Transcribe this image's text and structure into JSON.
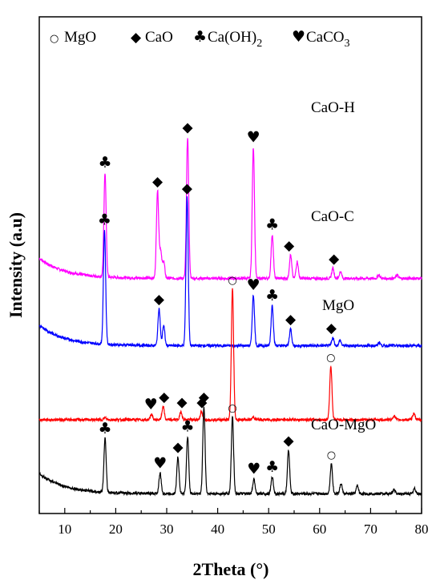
{
  "chart_data": {
    "type": "line",
    "xlabel": "2Theta (°)",
    "ylabel": "Intensity (a.u)",
    "xlim": [
      5,
      80
    ],
    "x_ticks": [
      10,
      20,
      30,
      40,
      50,
      60,
      70,
      80
    ],
    "grid": false,
    "legend_placement": "top",
    "legend": [
      {
        "symbol": "○",
        "label": "MgO",
        "phase": "mgo"
      },
      {
        "symbol": "◆",
        "label": "CaO",
        "phase": "cao"
      },
      {
        "symbol": "♣",
        "label": "Ca(OH)",
        "sub": "2",
        "phase": "caoh2"
      },
      {
        "symbol": "♥",
        "label": "CaCO",
        "sub": "3",
        "phase": "caco3"
      }
    ],
    "phase_symbols": {
      "mgo": "○",
      "cao": "◆",
      "caoh2": "♣",
      "caco3": "♥"
    },
    "series": [
      {
        "name": "CaO-H",
        "color": "#ff00ff",
        "offset": 3.2,
        "baseline": 0.3,
        "peaks": [
          [
            17.9,
            1.55
          ],
          [
            28.2,
            1.3
          ],
          [
            28.8,
            0.4
          ],
          [
            29.4,
            0.25
          ],
          [
            34.1,
            2.1
          ],
          [
            47.0,
            1.95
          ],
          [
            50.7,
            0.65
          ],
          [
            54.3,
            0.35
          ],
          [
            55.6,
            0.25
          ],
          [
            62.6,
            0.15
          ],
          [
            64.1,
            0.1
          ],
          [
            71.6,
            0.05
          ],
          [
            75.2,
            0.05
          ]
        ],
        "markers": [
          {
            "phase": "caoh2",
            "x": 17.9
          },
          {
            "phase": "cao",
            "x": 28.2
          },
          {
            "phase": "cao",
            "x": 34.1
          },
          {
            "phase": "caco3",
            "x": 47.0
          },
          {
            "phase": "caoh2",
            "x": 50.7
          },
          {
            "phase": "cao",
            "x": 54.0
          },
          {
            "phase": "cao",
            "x": 62.8
          }
        ]
      },
      {
        "name": "CaO-C",
        "color": "#0000ff",
        "offset": 2.2,
        "baseline": 0.3,
        "peaks": [
          [
            17.8,
            1.7
          ],
          [
            28.5,
            0.55
          ],
          [
            29.4,
            0.3
          ],
          [
            34.0,
            2.2
          ],
          [
            47.0,
            0.75
          ],
          [
            50.7,
            0.6
          ],
          [
            54.3,
            0.25
          ],
          [
            62.6,
            0.12
          ],
          [
            64.0,
            0.08
          ],
          [
            71.7,
            0.05
          ]
        ],
        "markers": [
          {
            "phase": "caoh2",
            "x": 17.8
          },
          {
            "phase": "cao",
            "x": 28.5
          },
          {
            "phase": "cao",
            "x": 34.0
          },
          {
            "phase": "caco3",
            "x": 47.0
          },
          {
            "phase": "caoh2",
            "x": 50.7
          },
          {
            "phase": "cao",
            "x": 54.3
          },
          {
            "phase": "cao",
            "x": 62.3
          }
        ]
      },
      {
        "name": "MgO",
        "color": "#ff0000",
        "offset": 1.1,
        "baseline": 0.0,
        "peaks": [
          [
            17.9,
            0.03
          ],
          [
            27.0,
            0.08
          ],
          [
            29.3,
            0.2
          ],
          [
            32.8,
            0.12
          ],
          [
            36.8,
            0.12
          ],
          [
            42.9,
            1.95
          ],
          [
            47.0,
            0.04
          ],
          [
            62.2,
            0.8
          ],
          [
            74.6,
            0.06
          ],
          [
            78.5,
            0.1
          ]
        ],
        "markers": [
          {
            "phase": "caco3",
            "x": 26.9
          },
          {
            "phase": "cao",
            "x": 29.5
          },
          {
            "phase": "cao",
            "x": 33.0
          },
          {
            "phase": "cao",
            "x": 36.9
          },
          {
            "phase": "mgo",
            "x": 42.9
          },
          {
            "phase": "mgo",
            "x": 62.2
          }
        ]
      },
      {
        "name": "CaO-MgO",
        "color": "#000000",
        "offset": 0.0,
        "baseline": 0.3,
        "peaks": [
          [
            17.9,
            0.8
          ],
          [
            28.7,
            0.3
          ],
          [
            32.2,
            0.55
          ],
          [
            34.1,
            0.85
          ],
          [
            37.3,
            1.3
          ],
          [
            42.9,
            1.15
          ],
          [
            47.1,
            0.22
          ],
          [
            50.7,
            0.25
          ],
          [
            53.9,
            0.65
          ],
          [
            62.3,
            0.45
          ],
          [
            64.2,
            0.15
          ],
          [
            67.4,
            0.12
          ],
          [
            74.6,
            0.06
          ],
          [
            78.6,
            0.08
          ]
        ],
        "markers": [
          {
            "phase": "caoh2",
            "x": 17.9
          },
          {
            "phase": "caco3",
            "x": 28.7
          },
          {
            "phase": "cao",
            "x": 32.2
          },
          {
            "phase": "caoh2",
            "x": 34.1
          },
          {
            "phase": "cao",
            "x": 37.3
          },
          {
            "phase": "mgo",
            "x": 42.9
          },
          {
            "phase": "caco3",
            "x": 47.1
          },
          {
            "phase": "caoh2",
            "x": 50.7
          },
          {
            "phase": "cao",
            "x": 53.9
          },
          {
            "phase": "mgo",
            "x": 62.3
          }
        ]
      }
    ]
  }
}
